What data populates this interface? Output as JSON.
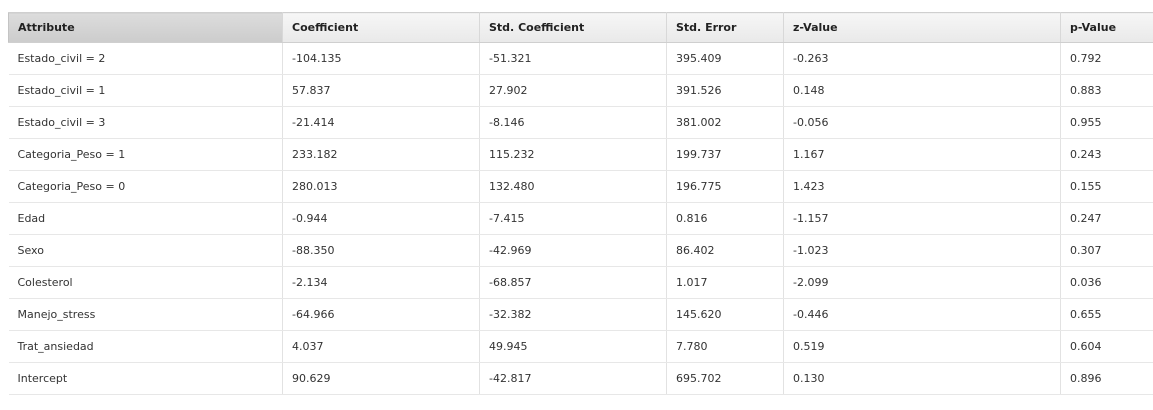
{
  "table": {
    "columns": [
      {
        "label": "Attribute",
        "sorted": true
      },
      {
        "label": "Coefficient",
        "sorted": false
      },
      {
        "label": "Std. Coefficient",
        "sorted": false
      },
      {
        "label": "Std. Error",
        "sorted": false
      },
      {
        "label": "z-Value",
        "sorted": false
      },
      {
        "label": "p-Value",
        "sorted": false
      }
    ],
    "rows": [
      [
        "Estado_civil = 2",
        "-104.135",
        "-51.321",
        "395.409",
        "-0.263",
        "0.792"
      ],
      [
        "Estado_civil = 1",
        "57.837",
        "27.902",
        "391.526",
        "0.148",
        "0.883"
      ],
      [
        "Estado_civil = 3",
        "-21.414",
        "-8.146",
        "381.002",
        "-0.056",
        "0.955"
      ],
      [
        "Categoria_Peso = 1",
        "233.182",
        "115.232",
        "199.737",
        "1.167",
        "0.243"
      ],
      [
        "Categoria_Peso = 0",
        "280.013",
        "132.480",
        "196.775",
        "1.423",
        "0.155"
      ],
      [
        "Edad",
        "-0.944",
        "-7.415",
        "0.816",
        "-1.157",
        "0.247"
      ],
      [
        "Sexo",
        "-88.350",
        "-42.969",
        "86.402",
        "-1.023",
        "0.307"
      ],
      [
        "Colesterol",
        "-2.134",
        "-68.857",
        "1.017",
        "-2.099",
        "0.036"
      ],
      [
        "Manejo_stress",
        "-64.966",
        "-32.382",
        "145.620",
        "-0.446",
        "0.655"
      ],
      [
        "Trat_ansiedad",
        "4.037",
        "49.945",
        "7.780",
        "0.519",
        "0.604"
      ],
      [
        "Intercept",
        "90.629",
        "-42.817",
        "695.702",
        "0.130",
        "0.896"
      ]
    ]
  }
}
